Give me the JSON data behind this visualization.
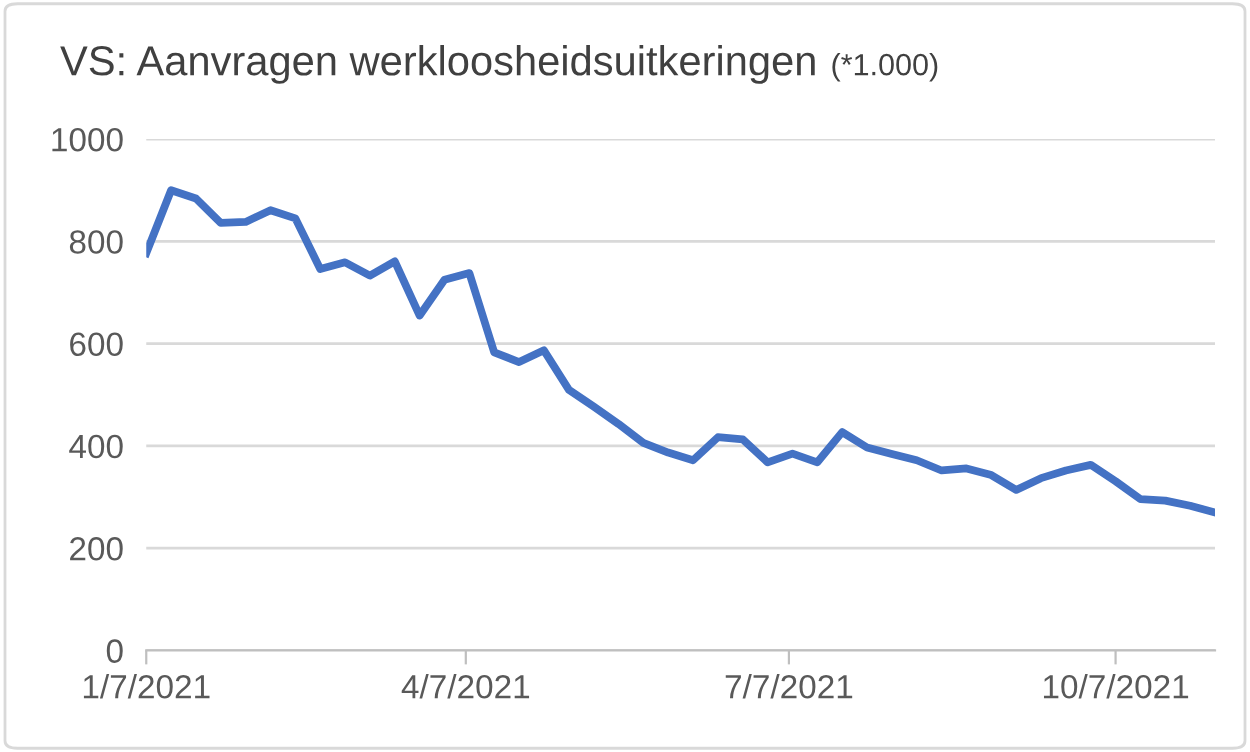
{
  "chart_data": {
    "type": "line",
    "title": "VS: Aanvragen werkloosheidsuitkeringen",
    "subtitle": "(*1.000)",
    "x": [
      "2021-01-07",
      "2021-01-14",
      "2021-01-21",
      "2021-01-28",
      "2021-02-04",
      "2021-02-11",
      "2021-02-18",
      "2021-02-25",
      "2021-03-04",
      "2021-03-11",
      "2021-03-18",
      "2021-03-25",
      "2021-04-01",
      "2021-04-08",
      "2021-04-15",
      "2021-04-22",
      "2021-04-29",
      "2021-05-06",
      "2021-05-13",
      "2021-05-20",
      "2021-05-27",
      "2021-06-03",
      "2021-06-10",
      "2021-06-17",
      "2021-06-24",
      "2021-07-01",
      "2021-07-08",
      "2021-07-15",
      "2021-07-22",
      "2021-07-29",
      "2021-08-05",
      "2021-08-12",
      "2021-08-19",
      "2021-08-26",
      "2021-09-02",
      "2021-09-09",
      "2021-09-16",
      "2021-09-23",
      "2021-09-30",
      "2021-10-07",
      "2021-10-14",
      "2021-10-21",
      "2021-10-28",
      "2021-11-04"
    ],
    "series": [
      {
        "color": "#4472c4",
        "values": [
          777,
          900,
          884,
          836,
          838,
          861,
          845,
          746,
          759,
          733,
          761,
          655,
          725,
          738,
          583,
          564,
          587,
          510,
          477,
          443,
          406,
          387,
          372,
          417,
          413,
          368,
          385,
          368,
          427,
          397,
          384,
          372,
          352,
          356,
          343,
          314,
          337,
          352,
          363,
          331,
          296,
          293,
          283,
          270
        ]
      }
    ],
    "xlim": [
      "2021-01-07",
      "2021-11-04"
    ],
    "xticks": [
      {
        "value": "2021-01-07",
        "label": "1/7/2021"
      },
      {
        "value": "2021-04-07",
        "label": "4/7/2021"
      },
      {
        "value": "2021-07-07",
        "label": "7/7/2021"
      },
      {
        "value": "2021-10-07",
        "label": "10/7/2021"
      }
    ],
    "ylim": [
      0,
      1000
    ],
    "yticks": [
      0,
      200,
      400,
      600,
      800,
      1000
    ],
    "grid": "y",
    "legend": false,
    "marker": "none",
    "line_style": "solid"
  }
}
